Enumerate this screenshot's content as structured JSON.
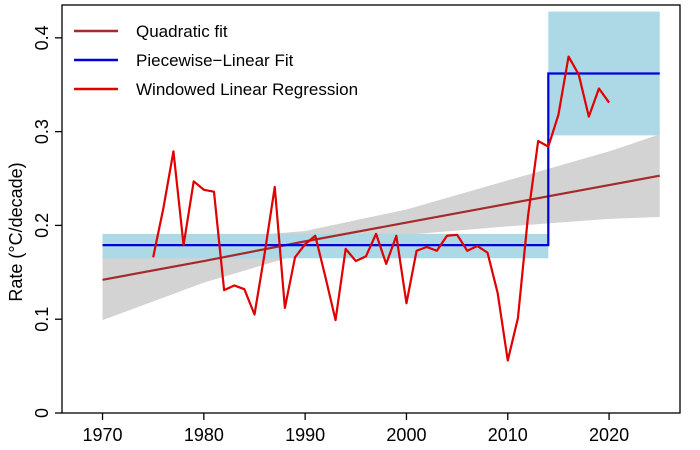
{
  "chart_data": {
    "type": "line",
    "title": "",
    "xlabel": "",
    "ylabel": "Rate (°C/decade)",
    "xlim": [
      1966,
      2027
    ],
    "ylim": [
      0,
      0.435
    ],
    "xticks": [
      1970,
      1980,
      1990,
      2000,
      2010,
      2020
    ],
    "yticks": [
      0,
      0.1,
      0.2,
      0.3,
      0.4
    ],
    "ytick_labels": [
      "0",
      "0.1",
      "0.2",
      "0.3",
      "0.4"
    ],
    "legend": [
      {
        "label": "Quadratic fit",
        "color": "#a52a2a"
      },
      {
        "label": "Piecewise−Linear Fit",
        "color": "#0000dd"
      },
      {
        "label": "Windowed Linear Regression",
        "color": "#e00000"
      }
    ],
    "quadratic_fit": {
      "name": "Quadratic fit",
      "color": "#a52a2a",
      "x": [
        1970,
        1980,
        1990,
        2000,
        2010,
        2020,
        2025
      ],
      "y": [
        0.142,
        0.162,
        0.183,
        0.203,
        0.223,
        0.243,
        0.253
      ],
      "ci_lower": [
        0.099,
        0.139,
        0.171,
        0.19,
        0.199,
        0.207,
        0.209
      ],
      "ci_upper": [
        0.19,
        0.185,
        0.194,
        0.217,
        0.248,
        0.279,
        0.297
      ],
      "ci_color": "#d3d3d3"
    },
    "piecewise_fit": {
      "name": "Piecewise−Linear Fit",
      "color": "#0000dd",
      "segments": [
        {
          "x_start": 1970,
          "x_end": 2014,
          "y": 0.179,
          "band": [
            0.165,
            0.191
          ]
        },
        {
          "x_start": 2014,
          "x_end": 2025,
          "y": 0.362,
          "band": [
            0.296,
            0.428
          ]
        }
      ],
      "band_color": "#add8e6"
    },
    "windowed_regression": {
      "name": "Windowed Linear Regression",
      "color": "#e00000",
      "x": [
        1975,
        1976,
        1977,
        1978,
        1979,
        1980,
        1981,
        1982,
        1983,
        1984,
        1985,
        1986,
        1987,
        1988,
        1989,
        1990,
        1991,
        1992,
        1993,
        1994,
        1995,
        1996,
        1997,
        1998,
        1999,
        2000,
        2001,
        2002,
        2003,
        2004,
        2005,
        2006,
        2007,
        2008,
        2009,
        2010,
        2011,
        2012,
        2013,
        2014,
        2015,
        2016,
        2017,
        2018,
        2019,
        2020
      ],
      "y": [
        0.166,
        0.218,
        0.279,
        0.179,
        0.247,
        0.238,
        0.236,
        0.131,
        0.136,
        0.132,
        0.105,
        0.17,
        0.241,
        0.112,
        0.166,
        0.18,
        0.189,
        0.145,
        0.099,
        0.175,
        0.162,
        0.167,
        0.191,
        0.159,
        0.189,
        0.117,
        0.173,
        0.177,
        0.173,
        0.189,
        0.19,
        0.173,
        0.178,
        0.171,
        0.128,
        0.056,
        0.101,
        0.21,
        0.29,
        0.284,
        0.318,
        0.38,
        0.361,
        0.316,
        0.346,
        0.331
      ]
    }
  }
}
